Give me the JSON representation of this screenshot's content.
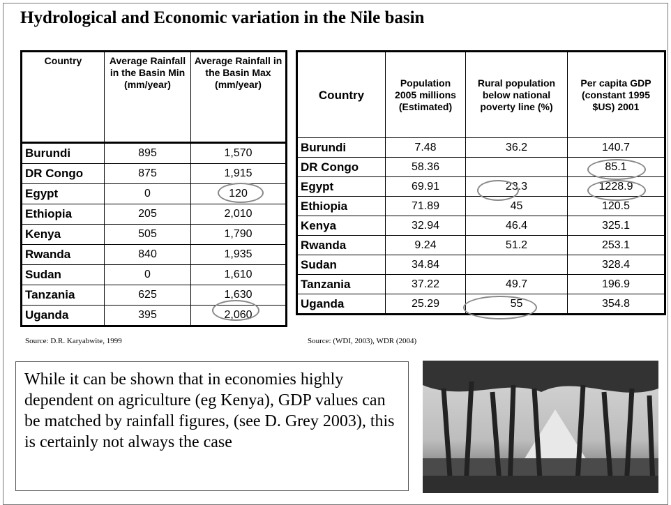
{
  "title": "Hydrological and Economic variation in the Nile basin",
  "rainfall_table": {
    "columns": [
      "Country",
      "Average Rainfall in the Basin Min (mm/year)",
      "Average Rainfall in the Basin Max (mm/year)"
    ],
    "rows": [
      [
        "Burundi",
        "895",
        "1,570"
      ],
      [
        "DR Congo",
        "875",
        "1,915"
      ],
      [
        "Egypt",
        "0",
        "120"
      ],
      [
        "Ethiopia",
        "205",
        "2,010"
      ],
      [
        "Kenya",
        "505",
        "1,790"
      ],
      [
        "Rwanda",
        "840",
        "1,935"
      ],
      [
        "Sudan",
        "0",
        "1,610"
      ],
      [
        "Tanzania",
        "625",
        "1,630"
      ],
      [
        "Uganda",
        "395",
        "2,060"
      ]
    ],
    "source": "Source: D.R. Karyabwite, 1999"
  },
  "economy_table": {
    "columns": [
      "Country",
      "Population 2005 millions (Estimated)",
      "Rural population below national poverty line (%)",
      "Per capita GDP (constant 1995 $US) 2001"
    ],
    "rows": [
      [
        "Burundi",
        "7.48",
        "36.2",
        "140.7"
      ],
      [
        "DR Congo",
        "58.36",
        null,
        "85.1"
      ],
      [
        "Egypt",
        "69.91",
        "23.3",
        "1228.9"
      ],
      [
        "Ethiopia",
        "71.89",
        "45",
        "120.5"
      ],
      [
        "Kenya",
        "32.94",
        "46.4",
        "325.1"
      ],
      [
        "Rwanda",
        "9.24",
        "51.2",
        "253.1"
      ],
      [
        "Sudan",
        "34.84",
        null,
        "328.4"
      ],
      [
        "Tanzania",
        "37.22",
        "49.7",
        "196.9"
      ],
      [
        "Uganda",
        "25.29",
        "55",
        "354.8"
      ]
    ],
    "source": "Source:  (WDI, 2003), WDR (2004)"
  },
  "text": "While it can be shown that in economies highly dependent on agriculture (eg Kenya), GDP values can be matched by rainfall figures, (see D. Grey 2003), this is certainly not always the case"
}
